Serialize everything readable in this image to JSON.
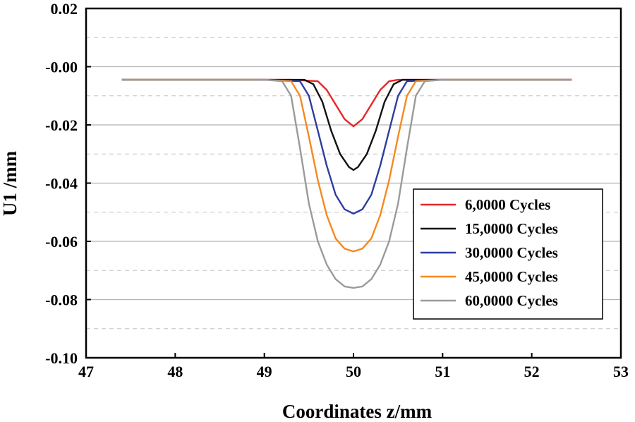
{
  "chart_data": {
    "type": "line",
    "title": "",
    "xlabel": "Coordinates z/mm",
    "ylabel": "U1 /mm",
    "xlim": [
      47,
      53
    ],
    "ylim": [
      -0.1,
      0.02
    ],
    "xticks": [
      47,
      48,
      49,
      50,
      51,
      52,
      53
    ],
    "xtick_labels": [
      "47",
      "48",
      "49",
      "50",
      "51",
      "52",
      "53"
    ],
    "yticks": [
      0.02,
      -0.0,
      -0.02,
      -0.04,
      -0.06,
      -0.08,
      -0.1
    ],
    "ytick_labels": [
      "0.02",
      "-0.00",
      "-0.02",
      "-0.04",
      "-0.06",
      "-0.08",
      "-0.10"
    ],
    "grid": true,
    "legend_position": "lower-right",
    "series": [
      {
        "name": "6,0000 Cycles",
        "color": "#e8262a",
        "x": [
          47.4,
          48.2,
          48.8,
          49.3,
          49.6,
          49.7,
          49.8,
          49.9,
          50.0,
          50.1,
          50.2,
          50.3,
          50.4,
          50.5,
          51.0,
          52.45
        ],
        "y": [
          -0.0045,
          -0.0045,
          -0.0045,
          -0.0045,
          -0.005,
          -0.008,
          -0.013,
          -0.018,
          -0.0205,
          -0.018,
          -0.013,
          -0.008,
          -0.005,
          -0.0045,
          -0.0045,
          -0.0045
        ]
      },
      {
        "name": "15,0000 Cycles",
        "color": "#111111",
        "x": [
          47.4,
          49.0,
          49.45,
          49.55,
          49.65,
          49.75,
          49.85,
          49.95,
          50.0,
          50.05,
          50.15,
          50.25,
          50.35,
          50.45,
          50.55,
          51.0,
          52.45
        ],
        "y": [
          -0.0045,
          -0.0045,
          -0.0045,
          -0.006,
          -0.012,
          -0.022,
          -0.03,
          -0.0345,
          -0.0355,
          -0.0345,
          -0.03,
          -0.022,
          -0.012,
          -0.006,
          -0.0045,
          -0.0045,
          -0.0045
        ]
      },
      {
        "name": "30,0000 Cycles",
        "color": "#2e3d9e",
        "x": [
          47.4,
          49.0,
          49.4,
          49.5,
          49.6,
          49.7,
          49.8,
          49.9,
          50.0,
          50.1,
          50.2,
          50.3,
          50.4,
          50.5,
          50.6,
          51.0,
          52.45
        ],
        "y": [
          -0.0045,
          -0.0045,
          -0.005,
          -0.01,
          -0.022,
          -0.034,
          -0.044,
          -0.049,
          -0.0505,
          -0.049,
          -0.044,
          -0.034,
          -0.022,
          -0.01,
          -0.005,
          -0.0045,
          -0.0045
        ]
      },
      {
        "name": "45,0000 Cycles",
        "color": "#f58a1f",
        "x": [
          47.4,
          49.0,
          49.3,
          49.4,
          49.5,
          49.6,
          49.7,
          49.8,
          49.9,
          50.0,
          50.1,
          50.2,
          50.3,
          50.4,
          50.5,
          50.6,
          50.7,
          51.0,
          52.45
        ],
        "y": [
          -0.0045,
          -0.0045,
          -0.005,
          -0.01,
          -0.024,
          -0.039,
          -0.051,
          -0.059,
          -0.0625,
          -0.0635,
          -0.0625,
          -0.059,
          -0.051,
          -0.039,
          -0.024,
          -0.01,
          -0.005,
          -0.0045,
          -0.0045
        ]
      },
      {
        "name": "60,0000 Cycles",
        "color": "#9a9a9a",
        "x": [
          47.4,
          49.0,
          49.2,
          49.3,
          49.4,
          49.5,
          49.6,
          49.7,
          49.8,
          49.9,
          50.0,
          50.1,
          50.2,
          50.3,
          50.4,
          50.5,
          50.6,
          50.7,
          50.8,
          51.0,
          52.45
        ],
        "y": [
          -0.0045,
          -0.0045,
          -0.005,
          -0.01,
          -0.028,
          -0.047,
          -0.06,
          -0.068,
          -0.073,
          -0.0755,
          -0.076,
          -0.0755,
          -0.073,
          -0.068,
          -0.06,
          -0.047,
          -0.028,
          -0.01,
          -0.005,
          -0.0045,
          -0.0045
        ]
      }
    ]
  }
}
